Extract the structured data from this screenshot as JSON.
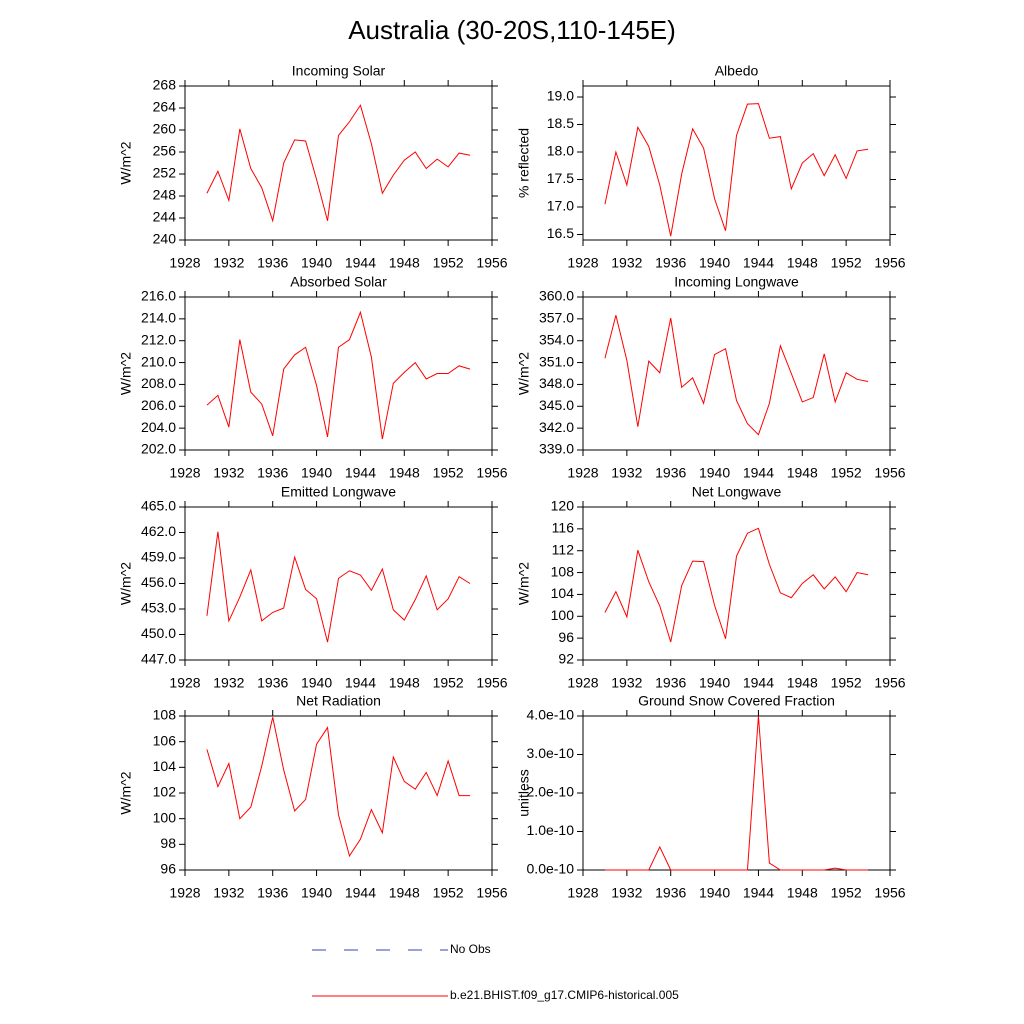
{
  "title": "Australia (30-20S,110-145E)",
  "legend": [
    {
      "name": "No Obs",
      "color": "#3344aa",
      "dash": true
    },
    {
      "name": "b.e21.BHIST.f09_g17.CMIP6-historical.005",
      "color": "#ff0000",
      "dash": false
    }
  ],
  "chart_data": [
    {
      "type": "line",
      "title": "Incoming Solar",
      "ylabel": "W/m^2",
      "color": "#ff0000",
      "x": [
        1930,
        1931,
        1932,
        1933,
        1934,
        1935,
        1936,
        1937,
        1938,
        1939,
        1940,
        1941,
        1942,
        1943,
        1944,
        1945,
        1946,
        1947,
        1948,
        1949,
        1950,
        1951,
        1952,
        1953,
        1954
      ],
      "values": [
        248.5,
        252.5,
        247.2,
        260.2,
        253,
        249.5,
        243.5,
        254,
        258.2,
        258,
        251,
        243.5,
        259,
        261.5,
        264.5,
        257.5,
        248.5,
        251.8,
        254.5,
        256,
        253,
        254.7,
        253.3,
        255.8,
        255.4
      ],
      "xlim": [
        1928,
        1956
      ],
      "xticks": [
        1928,
        1932,
        1936,
        1940,
        1944,
        1948,
        1952,
        1956
      ],
      "ylim": [
        240,
        268
      ],
      "yticks": [
        240,
        244,
        248,
        252,
        256,
        260,
        264,
        268
      ]
    },
    {
      "type": "line",
      "title": "Albedo",
      "ylabel": "% reflected",
      "color": "#ff0000",
      "x": [
        1930,
        1931,
        1932,
        1933,
        1934,
        1935,
        1936,
        1937,
        1938,
        1939,
        1940,
        1941,
        1942,
        1943,
        1944,
        1945,
        1946,
        1947,
        1948,
        1949,
        1950,
        1951,
        1952,
        1953,
        1954
      ],
      "values": [
        17.05,
        18.0,
        17.4,
        18.45,
        18.1,
        17.4,
        16.47,
        17.6,
        18.42,
        18.07,
        17.15,
        16.57,
        18.3,
        18.87,
        18.88,
        18.25,
        18.28,
        17.33,
        17.8,
        17.97,
        17.57,
        17.95,
        17.52,
        18.02,
        18.05
      ],
      "xlim": [
        1928,
        1956
      ],
      "xticks": [
        1928,
        1932,
        1936,
        1940,
        1944,
        1948,
        1952,
        1956
      ],
      "ylim": [
        16.4,
        19.2
      ],
      "yticks": [
        {
          "value": 16.5,
          "label": "16.5"
        },
        {
          "value": 17,
          "label": "17.0"
        },
        {
          "value": 17.5,
          "label": "17.5"
        },
        {
          "value": 18,
          "label": "18.0"
        },
        {
          "value": 18.5,
          "label": "18.5"
        },
        {
          "value": 19,
          "label": "19.0"
        }
      ]
    },
    {
      "type": "line",
      "title": "Absorbed Solar",
      "ylabel": "W/m^2",
      "color": "#ff0000",
      "x": [
        1930,
        1931,
        1932,
        1933,
        1934,
        1935,
        1936,
        1937,
        1938,
        1939,
        1940,
        1941,
        1942,
        1943,
        1944,
        1945,
        1946,
        1947,
        1948,
        1949,
        1950,
        1951,
        1952,
        1953,
        1954
      ],
      "values": [
        206.1,
        207.0,
        204.1,
        212.1,
        207.3,
        206.2,
        203.3,
        209.4,
        210.7,
        211.4,
        207.9,
        203.2,
        211.4,
        212.1,
        214.6,
        210.5,
        203.0,
        208.1,
        209.1,
        210.0,
        208.5,
        209.0,
        209.0,
        209.7,
        209.4
      ],
      "xlim": [
        1928,
        1956
      ],
      "xticks": [
        1928,
        1932,
        1936,
        1940,
        1944,
        1948,
        1952,
        1956
      ],
      "ylim": [
        202,
        216
      ],
      "yticks": [
        {
          "value": 202,
          "label": "202.0"
        },
        {
          "value": 204,
          "label": "204.0"
        },
        {
          "value": 206,
          "label": "206.0"
        },
        {
          "value": 208,
          "label": "208.0"
        },
        {
          "value": 210,
          "label": "210.0"
        },
        {
          "value": 212,
          "label": "212.0"
        },
        {
          "value": 214,
          "label": "214.0"
        },
        {
          "value": 216,
          "label": "216.0"
        }
      ]
    },
    {
      "type": "line",
      "title": "Incoming Longwave",
      "ylabel": "W/m^2",
      "color": "#ff0000",
      "x": [
        1930,
        1931,
        1932,
        1933,
        1934,
        1935,
        1936,
        1937,
        1938,
        1939,
        1940,
        1941,
        1942,
        1943,
        1944,
        1945,
        1946,
        1947,
        1948,
        1949,
        1950,
        1951,
        1952,
        1953,
        1954
      ],
      "values": [
        351.6,
        357.5,
        351.3,
        342.2,
        351.2,
        349.6,
        357.1,
        347.6,
        348.9,
        345.4,
        352.1,
        352.9,
        345.8,
        342.6,
        341.1,
        345.4,
        353.3,
        349.5,
        345.6,
        346.2,
        352.2,
        345.6,
        349.6,
        348.7,
        348.4
      ],
      "xlim": [
        1928,
        1956
      ],
      "xticks": [
        1928,
        1932,
        1936,
        1940,
        1944,
        1948,
        1952,
        1956
      ],
      "ylim": [
        339,
        360
      ],
      "yticks": [
        {
          "value": 339,
          "label": "339.0"
        },
        {
          "value": 342,
          "label": "342.0"
        },
        {
          "value": 345,
          "label": "345.0"
        },
        {
          "value": 348,
          "label": "348.0"
        },
        {
          "value": 351,
          "label": "351.0"
        },
        {
          "value": 354,
          "label": "354.0"
        },
        {
          "value": 357,
          "label": "357.0"
        },
        {
          "value": 360,
          "label": "360.0"
        }
      ]
    },
    {
      "type": "line",
      "title": "Emitted Longwave",
      "ylabel": "W/m^2",
      "color": "#ff0000",
      "x": [
        1930,
        1931,
        1932,
        1933,
        1934,
        1935,
        1936,
        1937,
        1938,
        1939,
        1940,
        1941,
        1942,
        1943,
        1944,
        1945,
        1946,
        1947,
        1948,
        1949,
        1950,
        1951,
        1952,
        1953,
        1954
      ],
      "values": [
        452.2,
        462.1,
        451.6,
        454.4,
        457.6,
        451.6,
        452.6,
        453.1,
        459.1,
        455.3,
        454.2,
        449.1,
        456.6,
        457.5,
        457.0,
        455.2,
        457.7,
        452.9,
        451.7,
        454.1,
        456.9,
        452.9,
        454.2,
        456.8,
        456.0
      ],
      "xlim": [
        1928,
        1956
      ],
      "xticks": [
        1928,
        1932,
        1936,
        1940,
        1944,
        1948,
        1952,
        1956
      ],
      "ylim": [
        447,
        465
      ],
      "yticks": [
        {
          "value": 447,
          "label": "447.0"
        },
        {
          "value": 450,
          "label": "450.0"
        },
        {
          "value": 453,
          "label": "453.0"
        },
        {
          "value": 456,
          "label": "456.0"
        },
        {
          "value": 459,
          "label": "459.0"
        },
        {
          "value": 462,
          "label": "462.0"
        },
        {
          "value": 465,
          "label": "465.0"
        }
      ]
    },
    {
      "type": "line",
      "title": "Net Longwave",
      "ylabel": "W/m^2",
      "color": "#ff0000",
      "x": [
        1930,
        1931,
        1932,
        1933,
        1934,
        1935,
        1936,
        1937,
        1938,
        1939,
        1940,
        1941,
        1942,
        1943,
        1944,
        1945,
        1946,
        1947,
        1948,
        1949,
        1950,
        1951,
        1952,
        1953,
        1954
      ],
      "values": [
        100.7,
        104.5,
        99.9,
        112.1,
        106.3,
        101.9,
        95.3,
        105.6,
        110.1,
        110.0,
        102.0,
        95.9,
        111.0,
        115.2,
        116.1,
        109.5,
        104.3,
        103.4,
        106.0,
        107.6,
        105.0,
        107.2,
        104.5,
        108.0,
        107.6
      ],
      "xlim": [
        1928,
        1956
      ],
      "xticks": [
        1928,
        1932,
        1936,
        1940,
        1944,
        1948,
        1952,
        1956
      ],
      "ylim": [
        92,
        120
      ],
      "yticks": [
        92,
        96,
        100,
        104,
        108,
        112,
        116,
        120
      ]
    },
    {
      "type": "line",
      "title": "Net Radiation",
      "ylabel": "W/m^2",
      "color": "#ff0000",
      "x": [
        1930,
        1931,
        1932,
        1933,
        1934,
        1935,
        1936,
        1937,
        1938,
        1939,
        1940,
        1941,
        1942,
        1943,
        1944,
        1945,
        1946,
        1947,
        1948,
        1949,
        1950,
        1951,
        1952,
        1953,
        1954
      ],
      "values": [
        105.4,
        102.5,
        104.3,
        100.0,
        100.9,
        104.1,
        107.9,
        103.8,
        100.6,
        101.5,
        105.8,
        107.1,
        100.3,
        97.1,
        98.4,
        100.7,
        98.9,
        104.8,
        102.9,
        102.3,
        103.6,
        101.8,
        104.5,
        101.8,
        101.8
      ],
      "xlim": [
        1928,
        1956
      ],
      "xticks": [
        1928,
        1932,
        1936,
        1940,
        1944,
        1948,
        1952,
        1956
      ],
      "ylim": [
        96,
        108
      ],
      "yticks": [
        96,
        98,
        100,
        102,
        104,
        106,
        108
      ]
    },
    {
      "type": "line",
      "title": "Ground Snow Covered Fraction",
      "ylabel": "unitless",
      "color": "#ff0000",
      "x": [
        1930,
        1931,
        1932,
        1933,
        1934,
        1935,
        1936,
        1937,
        1938,
        1939,
        1940,
        1941,
        1942,
        1943,
        1944,
        1945,
        1946,
        1947,
        1948,
        1949,
        1950,
        1951,
        1952,
        1953,
        1954
      ],
      "values": [
        0,
        0,
        0,
        0,
        0,
        6e-11,
        0,
        0,
        0,
        0,
        0,
        0,
        0,
        0,
        4e-10,
        1.8e-11,
        0,
        0,
        0,
        0,
        0,
        5e-12,
        0,
        0,
        0
      ],
      "xlim": [
        1928,
        1956
      ],
      "xticks": [
        1928,
        1932,
        1936,
        1940,
        1944,
        1948,
        1952,
        1956
      ],
      "ylim": [
        0,
        4e-10
      ],
      "yticks": [
        {
          "value": 0,
          "label": "0.0e-10"
        },
        {
          "value": 1e-10,
          "label": "1.0e-10"
        },
        {
          "value": 2e-10,
          "label": "2.0e-10"
        },
        {
          "value": 3e-10,
          "label": "3.0e-10"
        },
        {
          "value": 4e-10,
          "label": "4.0e-10"
        }
      ]
    }
  ]
}
